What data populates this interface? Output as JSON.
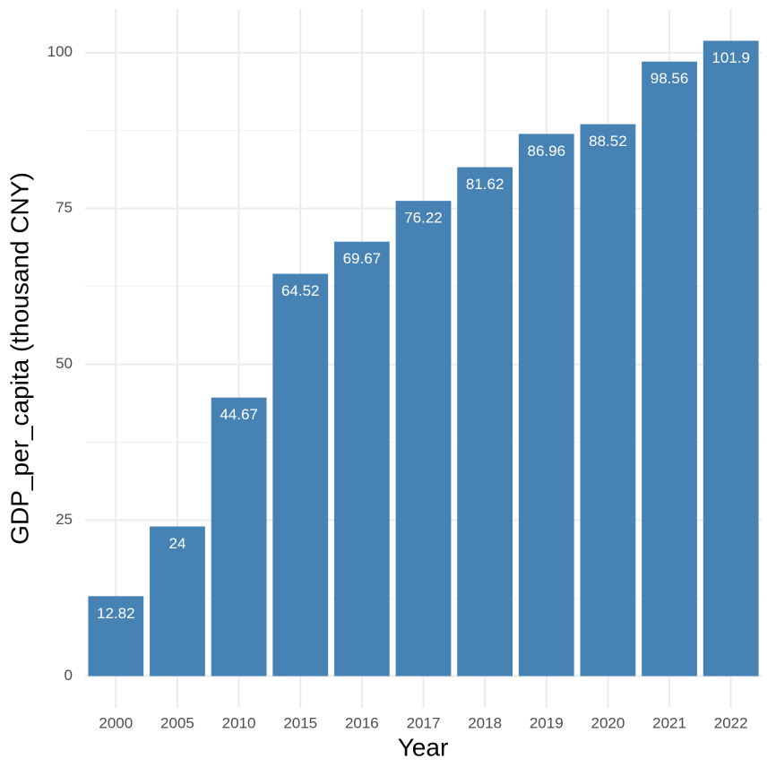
{
  "chart_data": {
    "type": "bar",
    "x_label": "Year",
    "y_label": "GDP_per_capita (thousand CNY)",
    "categories": [
      "2000",
      "2005",
      "2010",
      "2015",
      "2016",
      "2017",
      "2018",
      "2019",
      "2020",
      "2021",
      "2022"
    ],
    "values": [
      12.82,
      24,
      44.67,
      64.52,
      69.67,
      76.22,
      81.62,
      86.96,
      88.52,
      98.56,
      101.9
    ],
    "color": "#4682b4",
    "ylim": [
      -5.1,
      107
    ],
    "yticks": [
      0,
      25,
      50,
      75,
      100
    ],
    "minor_yticks": [
      12.5,
      37.5,
      62.5,
      87.5
    ],
    "grid": true
  }
}
